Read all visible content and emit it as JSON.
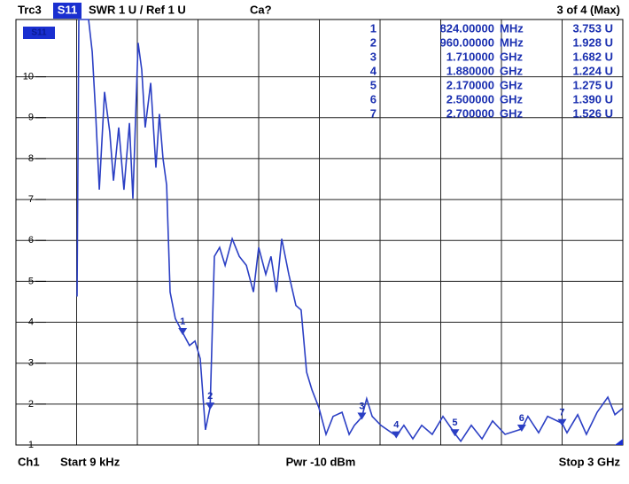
{
  "chart_data": {
    "type": "line",
    "header": {
      "trace": "Trc3",
      "param": "S11",
      "format": "SWR 1 U / Ref 1 U",
      "cal": "Ca?",
      "count": "3 of 4 (Max)"
    },
    "footer": {
      "channel": "Ch1",
      "start": "Start 9 kHz",
      "power": "Pwr -10 dBm",
      "stop": "Stop 3 GHz"
    },
    "trace_tag": "S11",
    "xlim": [
      9e-06,
      3
    ],
    "ylim": [
      1,
      11.4
    ],
    "yticks": [
      1,
      2,
      3,
      4,
      5,
      6,
      7,
      8,
      9,
      10
    ],
    "grid": true,
    "series": [
      {
        "name": "Trc3",
        "color": "#2b3fc4",
        "x": [
          0.302,
          0.311,
          0.359,
          0.377,
          0.394,
          0.412,
          0.438,
          0.464,
          0.482,
          0.508,
          0.534,
          0.561,
          0.578,
          0.604,
          0.622,
          0.639,
          0.666,
          0.692,
          0.709,
          0.727,
          0.745,
          0.762,
          0.788,
          0.824,
          0.858,
          0.885,
          0.911,
          0.937,
          0.96,
          0.981,
          1.007,
          1.034,
          1.069,
          1.104,
          1.139,
          1.174,
          1.2,
          1.235,
          1.261,
          1.288,
          1.314,
          1.349,
          1.384,
          1.41,
          1.437,
          1.463,
          1.498,
          1.533,
          1.568,
          1.612,
          1.647,
          1.673,
          1.71,
          1.734,
          1.761,
          1.804,
          1.88,
          1.918,
          1.962,
          2.006,
          2.058,
          2.111,
          2.17,
          2.199,
          2.251,
          2.304,
          2.356,
          2.418,
          2.5,
          2.531,
          2.584,
          2.628,
          2.7,
          2.724,
          2.777,
          2.82,
          2.873,
          2.926,
          2.961,
          3
        ],
        "values": [
          4.63,
          11.4,
          11.4,
          10.61,
          9.09,
          7.24,
          9.63,
          8.65,
          7.46,
          8.76,
          7.24,
          8.87,
          7.02,
          10.83,
          10.17,
          8.76,
          9.85,
          7.78,
          9.09,
          8.0,
          7.35,
          4.74,
          4.09,
          3.75,
          3.43,
          3.54,
          3.11,
          1.37,
          1.93,
          5.61,
          5.83,
          5.39,
          6.04,
          5.61,
          5.39,
          4.74,
          5.83,
          5.17,
          5.61,
          4.74,
          6.04,
          5.17,
          4.41,
          4.3,
          2.78,
          2.35,
          1.91,
          1.26,
          1.7,
          1.8,
          1.26,
          1.48,
          1.68,
          2.13,
          1.7,
          1.48,
          1.22,
          1.48,
          1.15,
          1.48,
          1.26,
          1.7,
          1.28,
          1.09,
          1.48,
          1.15,
          1.59,
          1.26,
          1.39,
          1.7,
          1.3,
          1.7,
          1.53,
          1.3,
          1.74,
          1.26,
          1.8,
          2.17,
          1.74,
          1.9
        ]
      }
    ],
    "markers": [
      {
        "label": "1",
        "x": 0.824,
        "y": 3.753,
        "freq": "824.00000",
        "unit": "MHz",
        "value_label": "3.753 U"
      },
      {
        "label": "2",
        "x": 0.96,
        "y": 1.928,
        "freq": "960.00000",
        "unit": "MHz",
        "value_label": "1.928 U"
      },
      {
        "label": "3",
        "x": 1.71,
        "y": 1.682,
        "freq": "1.710000",
        "unit": "GHz",
        "value_label": "1.682 U"
      },
      {
        "label": "4",
        "x": 1.88,
        "y": 1.224,
        "freq": "1.880000",
        "unit": "GHz",
        "value_label": "1.224 U"
      },
      {
        "label": "5",
        "x": 2.17,
        "y": 1.275,
        "freq": "2.170000",
        "unit": "GHz",
        "value_label": "1.275 U"
      },
      {
        "label": "6",
        "x": 2.5,
        "y": 1.39,
        "freq": "2.500000",
        "unit": "GHz",
        "value_label": "1.390 U"
      },
      {
        "label": "7",
        "x": 2.7,
        "y": 1.526,
        "freq": "2.700000",
        "unit": "GHz",
        "value_label": "1.526 U"
      }
    ]
  }
}
